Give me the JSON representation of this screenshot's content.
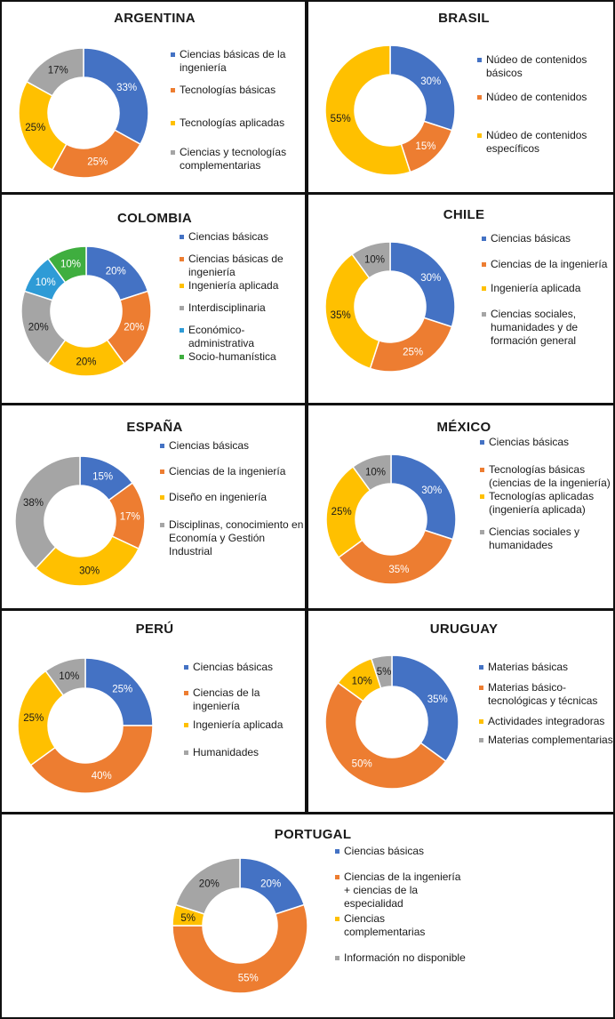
{
  "colors": {
    "blue": "#4472C4",
    "orange": "#ED7D31",
    "yellow": "#FFC000",
    "gray": "#A5A5A5",
    "lightblue": "#2E9BD6",
    "green": "#3FAE3F"
  },
  "chart_data": [
    {
      "type": "pie",
      "title": "ARGENTINA",
      "series": [
        {
          "name": "Ciencias básicas de la ingeniería",
          "value": 33,
          "label": "33%",
          "color": "blue"
        },
        {
          "name": "Tecnologías básicas",
          "value": 25,
          "label": "25%",
          "color": "orange"
        },
        {
          "name": "Tecnologías aplicadas",
          "value": 25,
          "label": "25%",
          "color": "yellow"
        },
        {
          "name": "Ciencias y tecnologías complementarias",
          "value": 17,
          "label": "17%",
          "color": "gray"
        }
      ]
    },
    {
      "type": "pie",
      "title": "BRASIL",
      "series": [
        {
          "name": "Núdeo de contenidos básicos",
          "value": 30,
          "label": "30%",
          "color": "blue"
        },
        {
          "name": "Núdeo de contenidos",
          "value": 15,
          "label": "15%",
          "color": "orange"
        },
        {
          "name": "Núdeo de contenidos específicos",
          "value": 55,
          "label": "55%",
          "color": "yellow"
        }
      ]
    },
    {
      "type": "pie",
      "title": "COLOMBIA",
      "series": [
        {
          "name": "Ciencias básicas",
          "value": 20,
          "label": "20%",
          "color": "blue"
        },
        {
          "name": "Ciencias básicas de ingeniería",
          "value": 20,
          "label": "20%",
          "color": "orange"
        },
        {
          "name": "Ingeniería aplicada",
          "value": 20,
          "label": "20%",
          "color": "yellow"
        },
        {
          "name": "Interdisciplinaria",
          "value": 20,
          "label": "20%",
          "color": "gray"
        },
        {
          "name": "Económico-administrativa",
          "value": 10,
          "label": "10%",
          "color": "lightblue"
        },
        {
          "name": "Socio-humanística",
          "value": 10,
          "label": "10%",
          "color": "green"
        }
      ]
    },
    {
      "type": "pie",
      "title": "CHILE",
      "series": [
        {
          "name": "Ciencias básicas",
          "value": 30,
          "label": "30%",
          "color": "blue"
        },
        {
          "name": "Ciencias de la ingeniería",
          "value": 25,
          "label": "25%",
          "color": "orange"
        },
        {
          "name": "Ingeniería aplicada",
          "value": 35,
          "label": "35%",
          "color": "yellow"
        },
        {
          "name": "Ciencias sociales, humanidades y de formación general",
          "value": 10,
          "label": "10%",
          "color": "gray"
        }
      ]
    },
    {
      "type": "pie",
      "title": "ESPAÑA",
      "series": [
        {
          "name": "Ciencias básicas",
          "value": 15,
          "label": "15%",
          "color": "blue"
        },
        {
          "name": "Ciencias de la ingeniería",
          "value": 17,
          "label": "17%",
          "color": "orange"
        },
        {
          "name": "Diseño en ingeniería",
          "value": 30,
          "label": "30%",
          "color": "yellow"
        },
        {
          "name": "Disciplinas, conocimiento en Economía y Gestión Industrial",
          "value": 38,
          "label": "38%",
          "color": "gray"
        }
      ]
    },
    {
      "type": "pie",
      "title": "MÉXICO",
      "series": [
        {
          "name": "Ciencias básicas",
          "value": 30,
          "label": "30%",
          "color": "blue"
        },
        {
          "name": "Tecnologías básicas (ciencias de la ingeniería)",
          "value": 35,
          "label": "35%",
          "color": "orange"
        },
        {
          "name": "Tecnologías aplicadas (ingeniería aplicada)",
          "value": 25,
          "label": "25%",
          "color": "yellow"
        },
        {
          "name": "Ciencias sociales y humanidades",
          "value": 10,
          "label": "10%",
          "color": "gray"
        }
      ]
    },
    {
      "type": "pie",
      "title": "PERÚ",
      "series": [
        {
          "name": "Ciencias básicas",
          "value": 25,
          "label": "25%",
          "color": "blue"
        },
        {
          "name": "Ciencias de la ingeniería",
          "value": 40,
          "label": "40%",
          "color": "orange"
        },
        {
          "name": "Ingeniería aplicada",
          "value": 25,
          "label": "25%",
          "color": "yellow"
        },
        {
          "name": "Humanidades",
          "value": 10,
          "label": "10%",
          "color": "gray"
        }
      ]
    },
    {
      "type": "pie",
      "title": "URUGUAY",
      "series": [
        {
          "name": "Materias básicas",
          "value": 35,
          "label": "35%",
          "color": "blue"
        },
        {
          "name": "Materias básico-tecnológicas y técnicas",
          "value": 50,
          "label": "50%",
          "color": "orange"
        },
        {
          "name": "Actividades integradoras",
          "value": 10,
          "label": "10%",
          "color": "yellow"
        },
        {
          "name": "Materias complementarias",
          "value": 5,
          "label": "5%",
          "color": "gray"
        }
      ]
    },
    {
      "type": "pie",
      "title": "PORTUGAL",
      "series": [
        {
          "name": "Ciencias básicas",
          "value": 20,
          "label": "20%",
          "color": "blue"
        },
        {
          "name": "Ciencias de la ingeniería + ciencias de la especialidad",
          "value": 55,
          "label": "55%",
          "color": "orange"
        },
        {
          "name": "Ciencias complementarias",
          "value": 5,
          "label": "5%",
          "color": "yellow"
        },
        {
          "name": "Información no disponible",
          "value": 20,
          "label": "20%",
          "color": "gray"
        }
      ]
    }
  ]
}
